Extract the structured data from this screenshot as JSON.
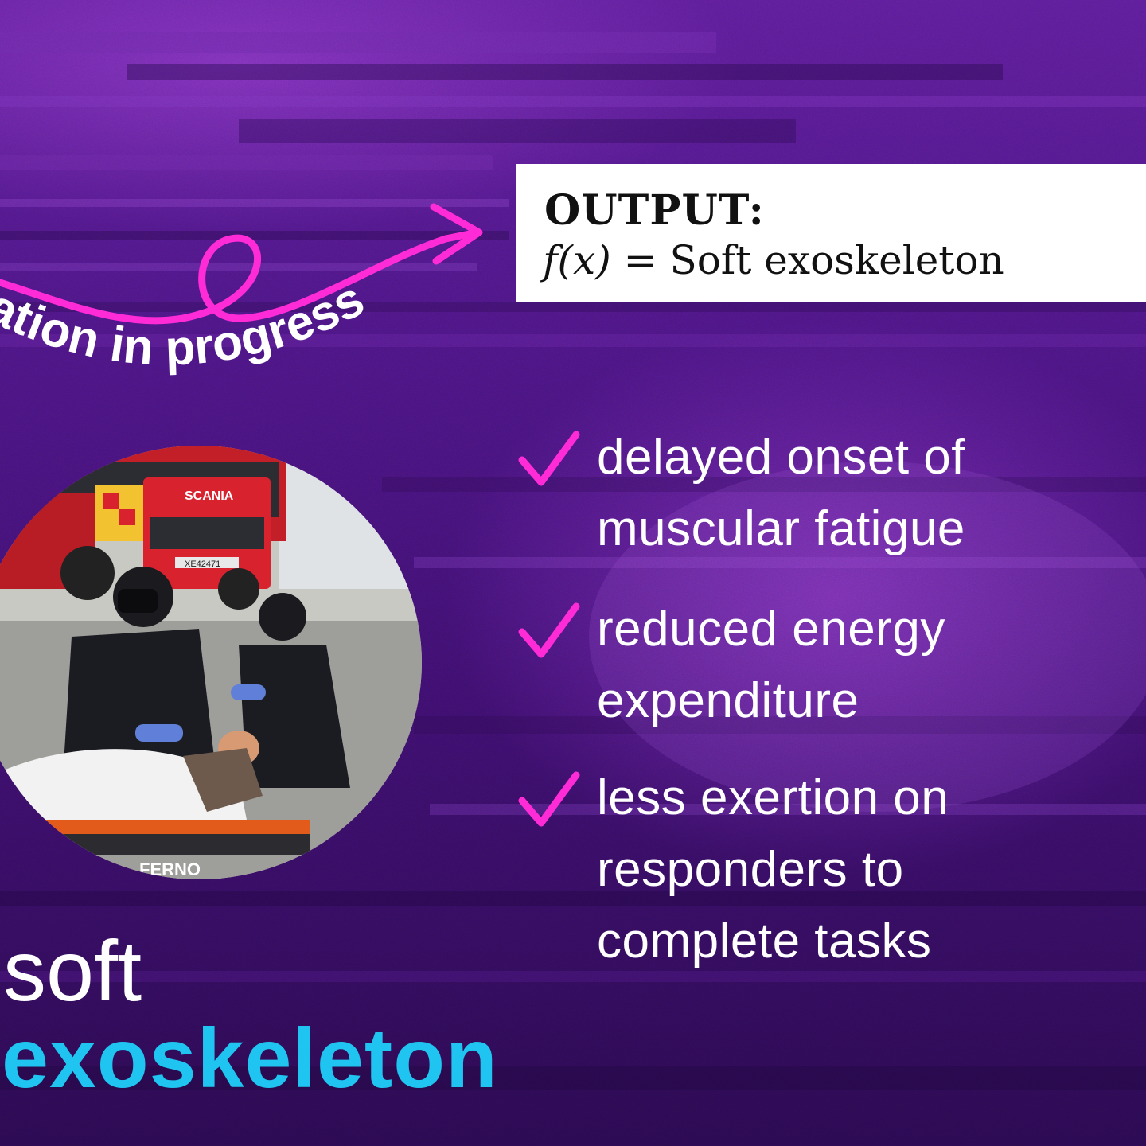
{
  "output_box": {
    "heading": "OUTPUT:",
    "formula_lhs": "f(x)",
    "formula_eq": "=",
    "formula_rhs": "Soft exoskeleton"
  },
  "arrow_label": "ation in progress",
  "benefits": [
    {
      "text": "delayed onset of\nmuscular fatigue",
      "icon": "checkmark-icon"
    },
    {
      "text": "reduced energy\nexpenditure",
      "icon": "checkmark-icon"
    },
    {
      "text": "less exertion on\nresponders to\ncomplete tasks",
      "icon": "checkmark-icon"
    }
  ],
  "title": {
    "line1": "soft",
    "line2": "exoskeleton"
  },
  "photo": {
    "truck_label": "SCANIA",
    "plate": "XE42471",
    "stretcher_label": "FERNO"
  },
  "colors": {
    "background": "#4a1580",
    "accent_magenta": "#ff2bd6",
    "accent_cyan": "#1fc4f0",
    "text": "#ffffff"
  }
}
